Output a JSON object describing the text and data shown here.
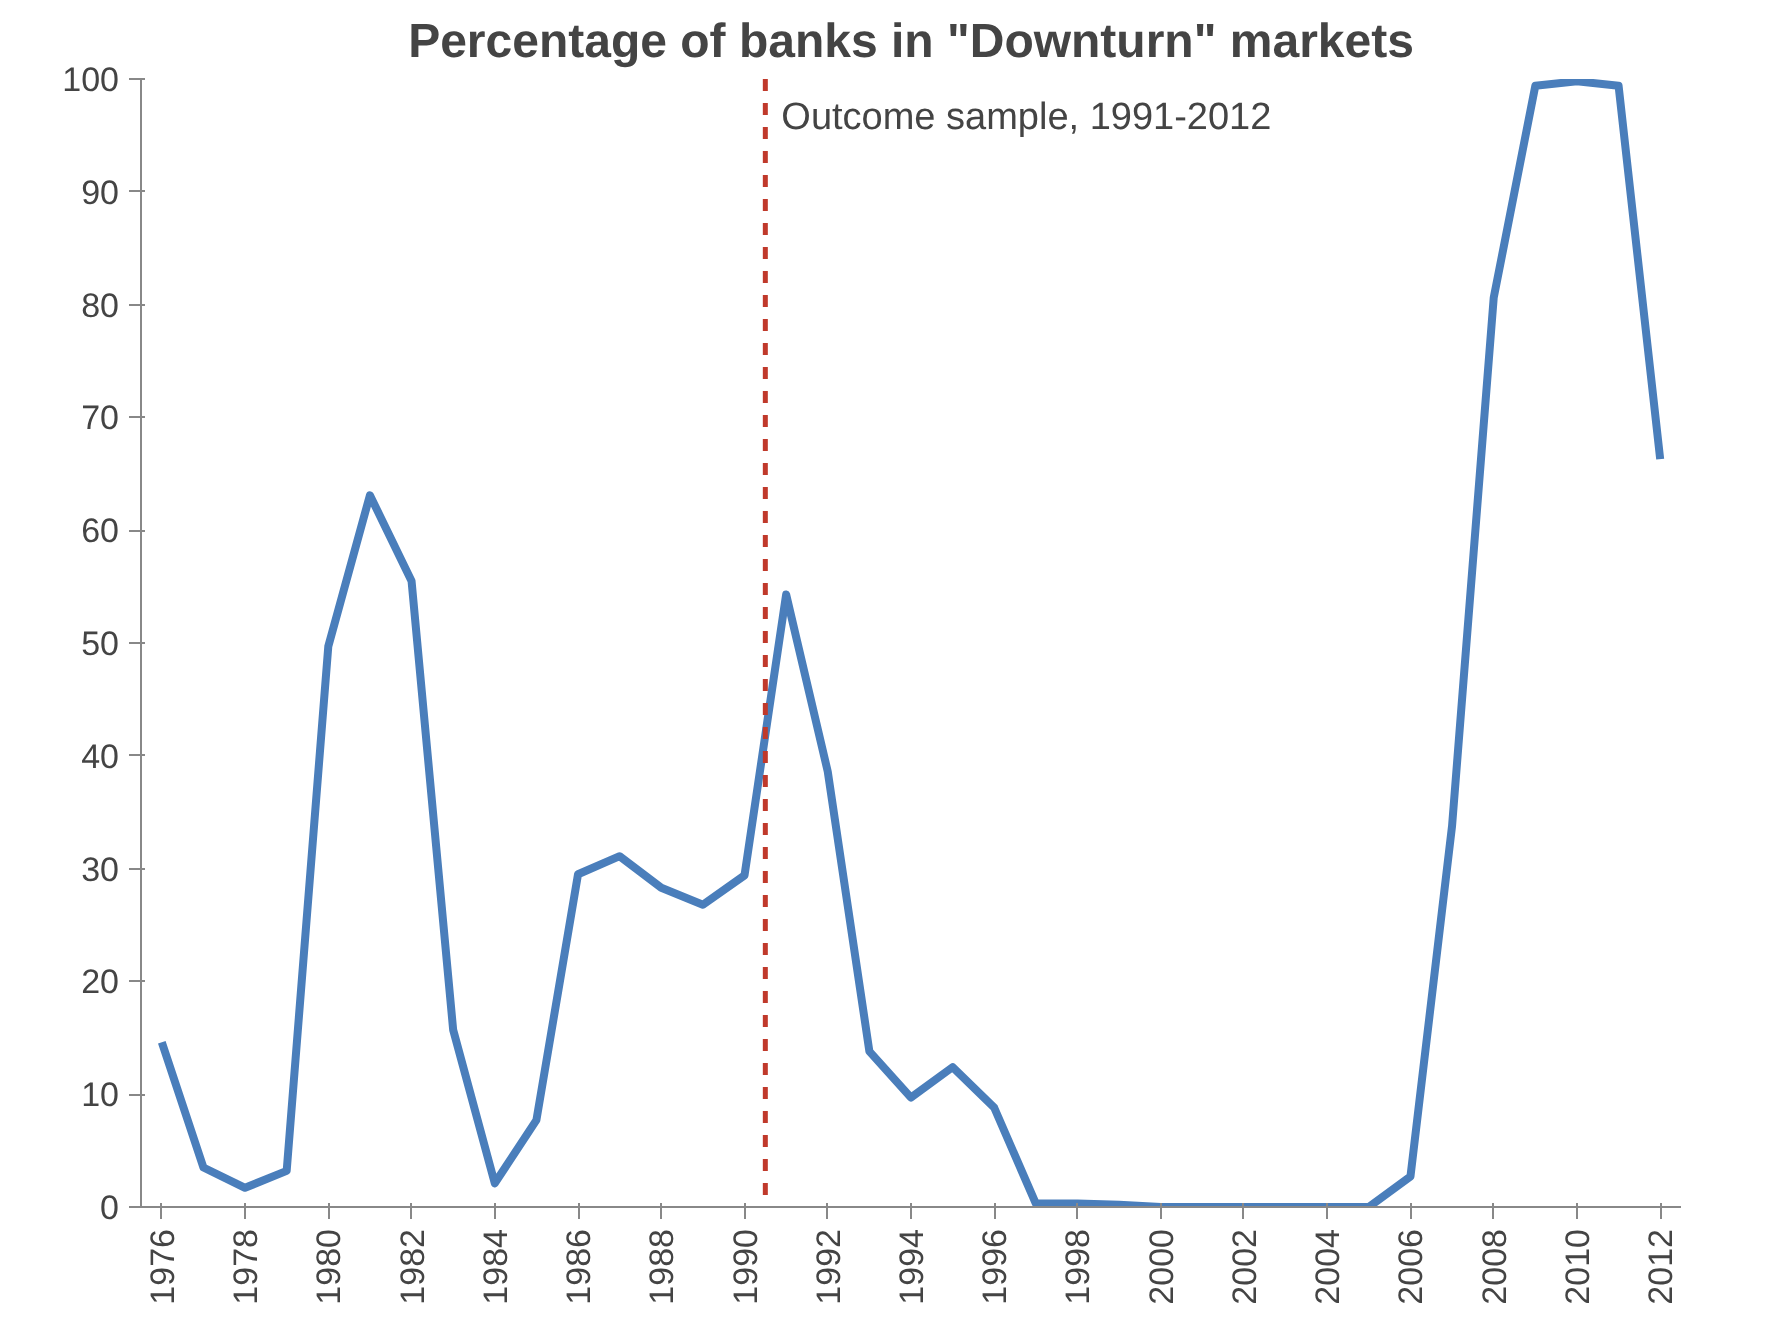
{
  "chart_data": {
    "type": "line",
    "title": "Percentage of banks in \"Downturn\" markets",
    "x": [
      1976,
      1977,
      1978,
      1979,
      1980,
      1981,
      1982,
      1983,
      1984,
      1985,
      1986,
      1987,
      1988,
      1989,
      1990,
      1991,
      1992,
      1993,
      1994,
      1995,
      1996,
      1997,
      1998,
      1999,
      2000,
      2001,
      2002,
      2003,
      2004,
      2005,
      2006,
      2007,
      2008,
      2009,
      2010,
      2011,
      2012
    ],
    "series": [
      {
        "color": "#4a7ebb",
        "values": [
          14.6,
          3.5,
          1.7,
          3.2,
          49.7,
          63.1,
          55.5,
          15.7,
          2.1,
          7.7,
          29.5,
          31.1,
          28.3,
          26.8,
          29.4,
          54.3,
          38.6,
          13.8,
          9.7,
          12.4,
          8.8,
          0.3,
          0.3,
          0.2,
          0,
          0,
          0,
          0,
          0,
          0,
          2.7,
          33.8,
          80.6,
          99.4,
          99.8,
          99.4,
          66.3
        ]
      }
    ],
    "xlim": [
      1975.5,
      2012.5
    ],
    "xticks": [
      1976,
      1978,
      1980,
      1982,
      1984,
      1986,
      1988,
      1990,
      1992,
      1994,
      1996,
      1998,
      2000,
      2002,
      2004,
      2006,
      2008,
      2010,
      2012
    ],
    "ylim": [
      0,
      100
    ],
    "yticks": [
      0,
      10,
      20,
      30,
      40,
      50,
      60,
      70,
      80,
      90,
      100
    ],
    "ref_lines": [
      {
        "axis": "x",
        "value": 1990.5,
        "label": "Outcome sample, 1991-2012",
        "color": "#c0392b",
        "line_style": "dashed"
      }
    ],
    "grid": false,
    "marker": "none",
    "line_style": "solid"
  }
}
